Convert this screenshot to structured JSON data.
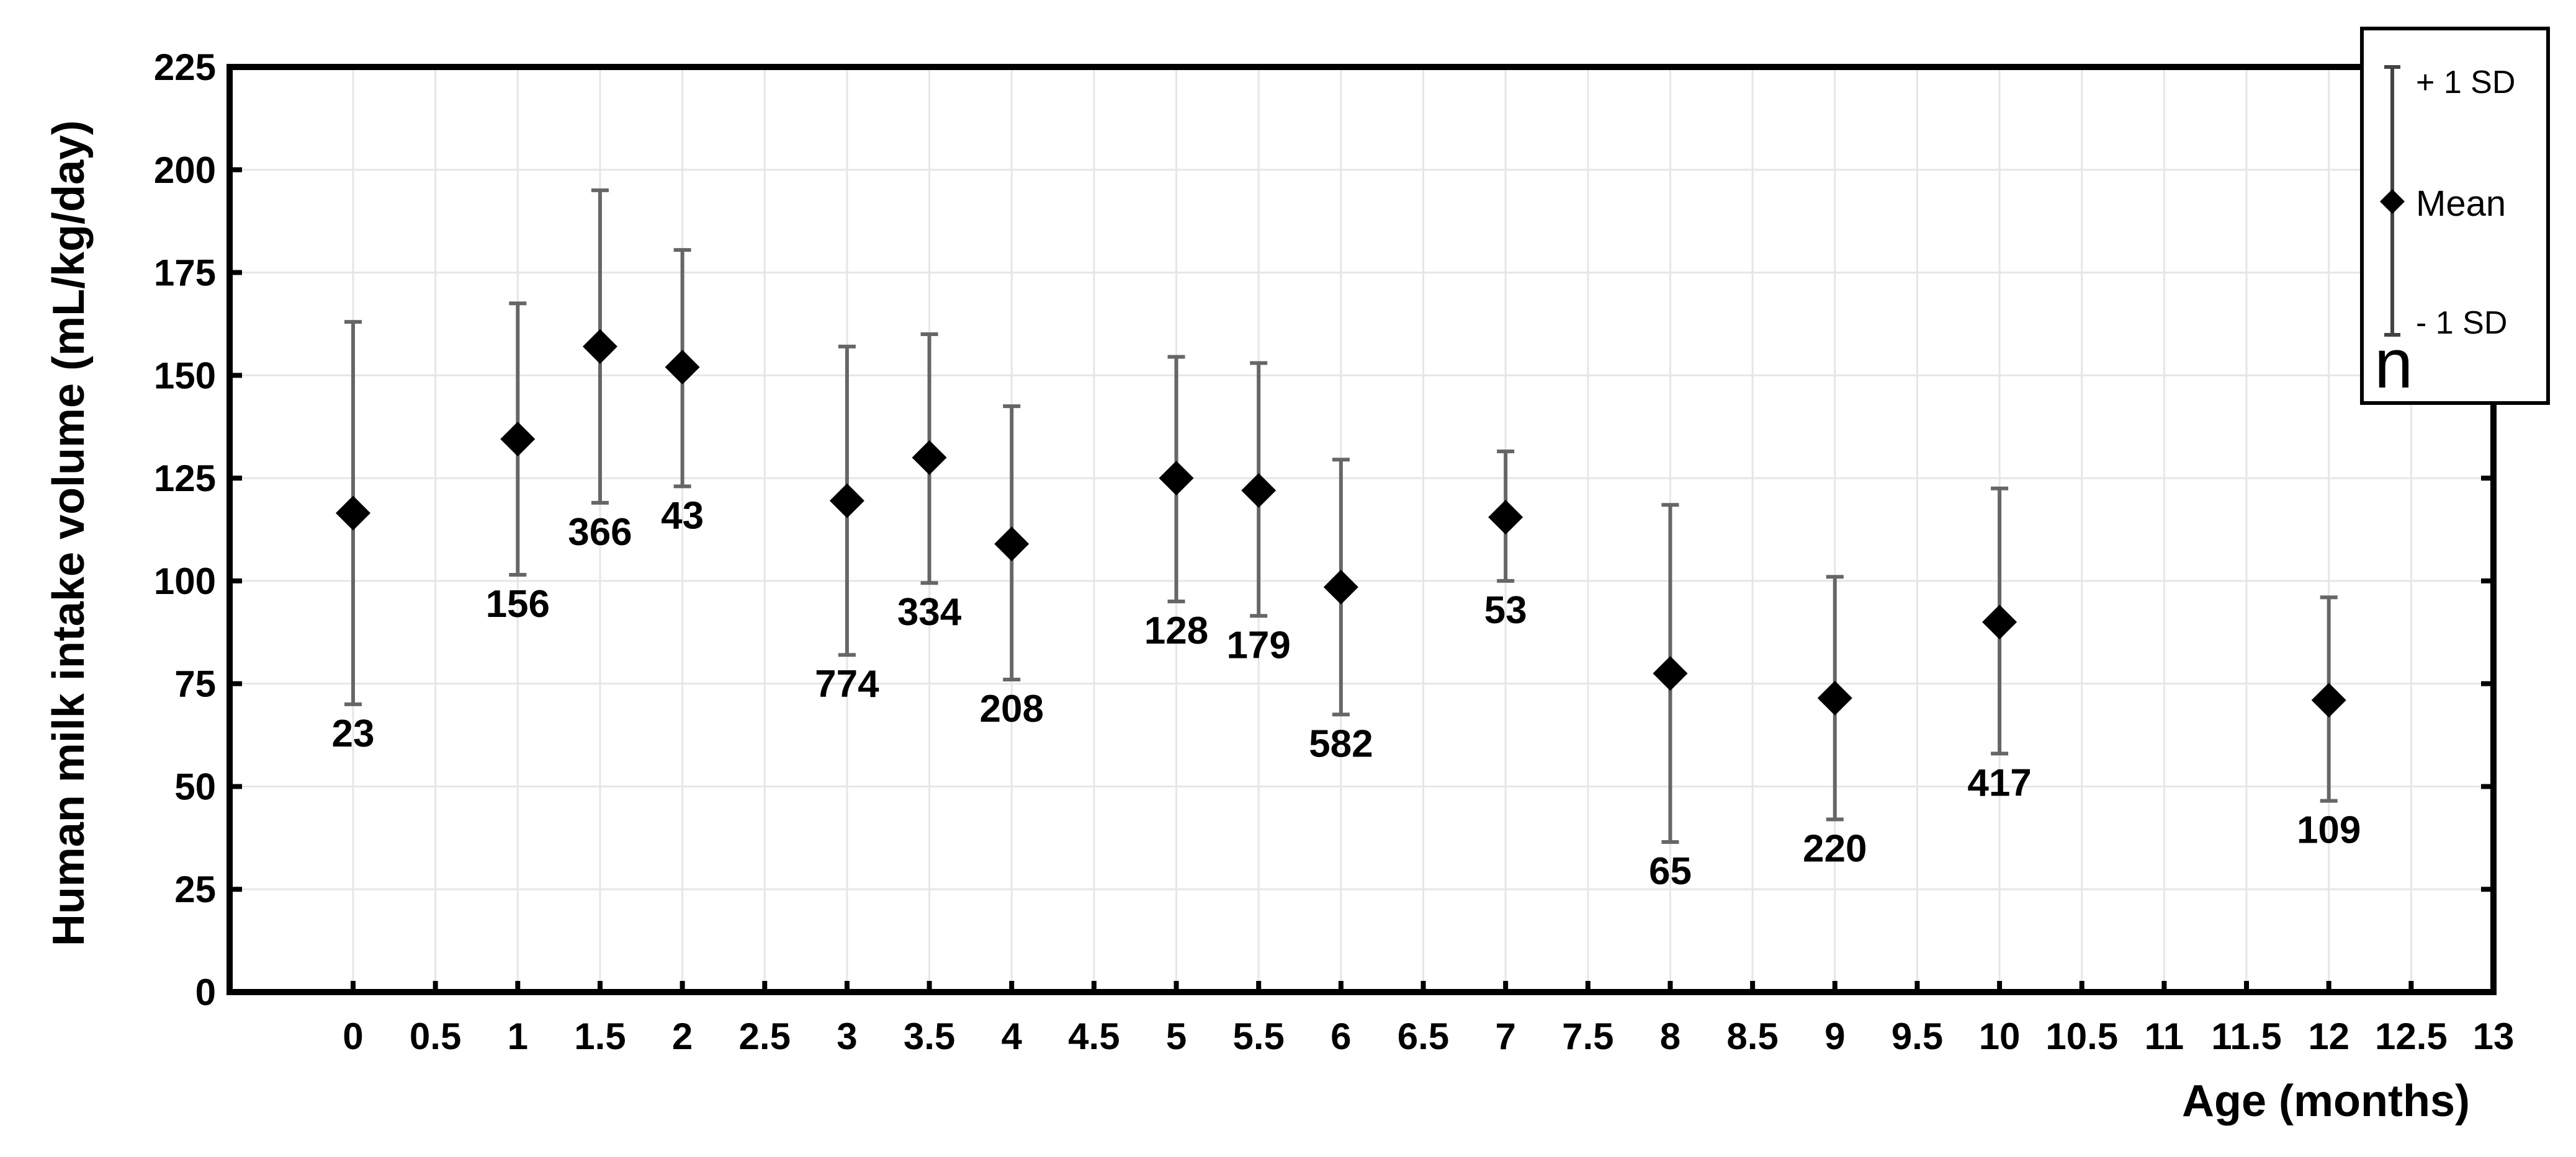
{
  "chart_data": {
    "type": "scatter",
    "title": "",
    "xlabel": "Age (months)",
    "ylabel": "Human milk intake volume (mL/kg/day)",
    "xlim": [
      -0.75,
      13
    ],
    "ylim": [
      0,
      225
    ],
    "grid": true,
    "x_ticks": [
      "0",
      "0.5",
      "1",
      "1.5",
      "2",
      "2.5",
      "3",
      "3.5",
      "4",
      "4.5",
      "5",
      "5.5",
      "6",
      "6.5",
      "7",
      "7.5",
      "8",
      "8.5",
      "9",
      "9.5",
      "10",
      "10.5",
      "11",
      "11.5",
      "12",
      "12.5",
      "13"
    ],
    "y_ticks": [
      "0",
      "25",
      "50",
      "75",
      "100",
      "125",
      "150",
      "175",
      "200",
      "225"
    ],
    "points": [
      {
        "x": 0,
        "mean": 116.5,
        "upper": 163,
        "lower": 70,
        "n": "23"
      },
      {
        "x": 1,
        "mean": 134.5,
        "upper": 167.5,
        "lower": 101.5,
        "n": "156"
      },
      {
        "x": 1.5,
        "mean": 157,
        "upper": 195,
        "lower": 119,
        "n": "366"
      },
      {
        "x": 2,
        "mean": 152,
        "upper": 180.5,
        "lower": 123,
        "n": "43"
      },
      {
        "x": 3,
        "mean": 119.5,
        "upper": 157,
        "lower": 82,
        "n": "774"
      },
      {
        "x": 3.5,
        "mean": 130,
        "upper": 160,
        "lower": 99.5,
        "n": "334"
      },
      {
        "x": 4,
        "mean": 109,
        "upper": 142.5,
        "lower": 76,
        "n": "208"
      },
      {
        "x": 5,
        "mean": 125,
        "upper": 154.5,
        "lower": 95,
        "n": "128"
      },
      {
        "x": 5.5,
        "mean": 122,
        "upper": 153,
        "lower": 91.5,
        "n": "179"
      },
      {
        "x": 6,
        "mean": 98.5,
        "upper": 129.5,
        "lower": 67.5,
        "n": "582"
      },
      {
        "x": 7,
        "mean": 115.5,
        "upper": 131.5,
        "lower": 100,
        "n": "53"
      },
      {
        "x": 8,
        "mean": 77.5,
        "upper": 118.5,
        "lower": 36.5,
        "n": "65"
      },
      {
        "x": 9,
        "mean": 71.5,
        "upper": 101,
        "lower": 42,
        "n": "220"
      },
      {
        "x": 10,
        "mean": 90,
        "upper": 122.5,
        "lower": 58,
        "n": "417"
      },
      {
        "x": 12,
        "mean": 71,
        "upper": 96,
        "lower": 46.5,
        "n": "109"
      }
    ],
    "legend": {
      "placement": "top-right",
      "upper_label": "+ 1 SD",
      "mean_label": "Mean",
      "lower_label": "- 1 SD",
      "n_label": "n"
    },
    "colors": {
      "marker": "#000000",
      "errorbar": "#666666",
      "axis": "#000000",
      "grid": "#e6e6e6"
    }
  }
}
